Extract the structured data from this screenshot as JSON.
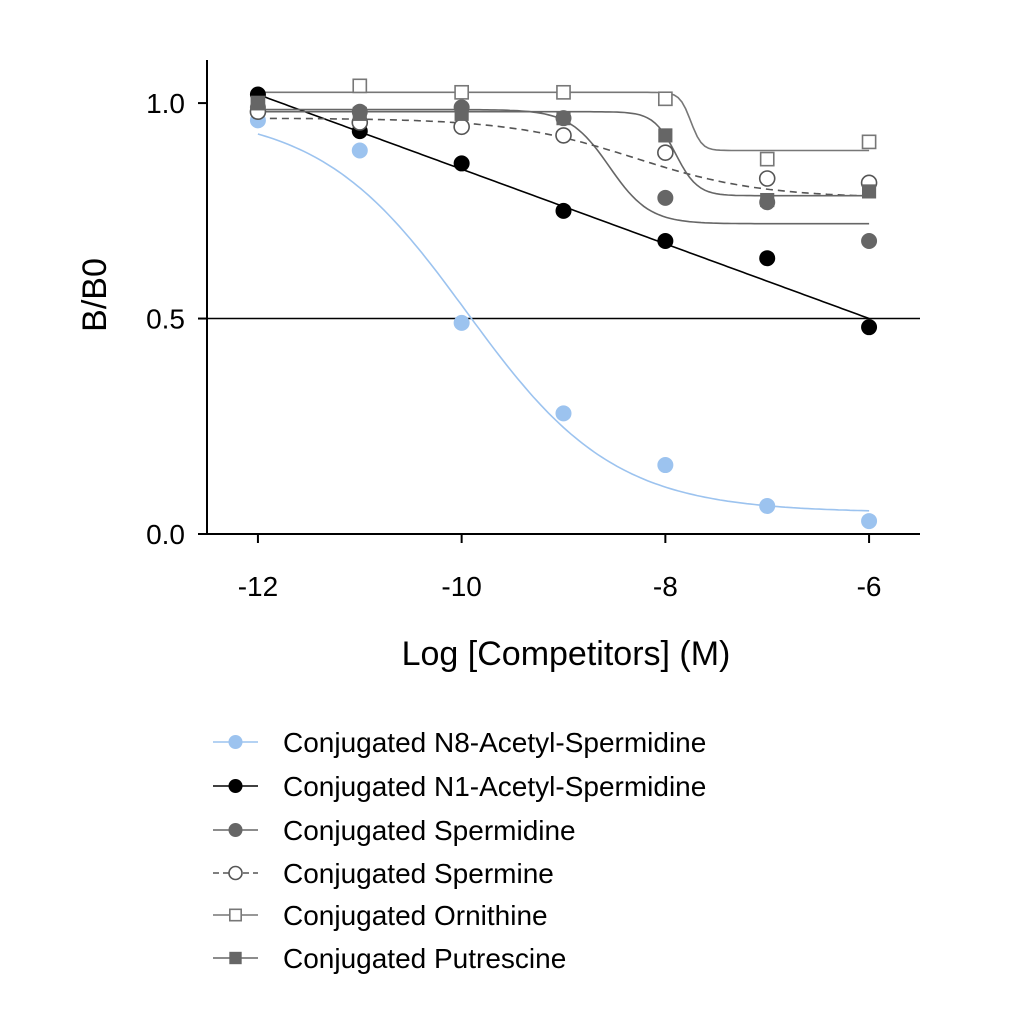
{
  "chart_data": {
    "type": "scatter",
    "title": "",
    "xlabel": "Log [Competitors] (M)",
    "ylabel": "B/B0",
    "xlim": [
      -12.5,
      -5.5
    ],
    "ylim": [
      0,
      1.1
    ],
    "x_ticks": [
      -12,
      -10,
      -8,
      -6
    ],
    "x_tick_labels": [
      "-12",
      "-10",
      "-8",
      "-6"
    ],
    "y_ticks": [
      0,
      0.5,
      1.0
    ],
    "y_tick_labels": [
      "0.0",
      "0.5",
      "1.0"
    ],
    "reference_line_y": 0.5,
    "grid": false,
    "legend_position": "bottom",
    "series": [
      {
        "name": "Conjugated N8-Acetyl-Spermidine",
        "color": "#9cc3ef",
        "marker": "circle-filled",
        "line_style": "solid",
        "fit": {
          "model": "sigmoid",
          "top": 0.98,
          "bottom": 0.05,
          "ic50": -9.95,
          "hill": 0.6
        },
        "points": [
          {
            "x": -12,
            "y": 0.96
          },
          {
            "x": -11,
            "y": 0.89
          },
          {
            "x": -10,
            "y": 0.49
          },
          {
            "x": -9,
            "y": 0.28
          },
          {
            "x": -8,
            "y": 0.16
          },
          {
            "x": -7,
            "y": 0.065
          },
          {
            "x": -6,
            "y": 0.03
          }
        ]
      },
      {
        "name": "Conjugated N1-Acetyl-Spermidine",
        "color": "#000000",
        "marker": "circle-filled",
        "line_style": "solid",
        "fit": {
          "model": "linear",
          "x0": -12,
          "y0": 1.02,
          "x1": -6,
          "y1": 0.5
        },
        "points": [
          {
            "x": -12,
            "y": 1.02
          },
          {
            "x": -11,
            "y": 0.935
          },
          {
            "x": -10,
            "y": 0.86
          },
          {
            "x": -9,
            "y": 0.75
          },
          {
            "x": -8,
            "y": 0.68
          },
          {
            "x": -7,
            "y": 0.64
          },
          {
            "x": -6,
            "y": 0.48
          }
        ]
      },
      {
        "name": "Conjugated Spermidine",
        "color": "#666666",
        "marker": "circle-filled",
        "line_style": "solid",
        "fit": {
          "model": "sigmoid",
          "top": 0.985,
          "bottom": 0.72,
          "ic50": -8.55,
          "hill": 2.2
        },
        "points": [
          {
            "x": -12,
            "y": 0.99
          },
          {
            "x": -11,
            "y": 0.98
          },
          {
            "x": -10,
            "y": 0.99
          },
          {
            "x": -9,
            "y": 0.965
          },
          {
            "x": -8,
            "y": 0.78
          },
          {
            "x": -7,
            "y": 0.77
          },
          {
            "x": -6,
            "y": 0.68
          }
        ]
      },
      {
        "name": "Conjugated Spermine",
        "color": "#555555",
        "marker": "circle-open",
        "line_style": "dashed",
        "fit": {
          "model": "sigmoid",
          "top": 0.965,
          "bottom": 0.78,
          "ic50": -8.3,
          "hill": 0.7
        },
        "points": [
          {
            "x": -12,
            "y": 0.98
          },
          {
            "x": -11,
            "y": 0.955
          },
          {
            "x": -10,
            "y": 0.945
          },
          {
            "x": -9,
            "y": 0.925
          },
          {
            "x": -8,
            "y": 0.885
          },
          {
            "x": -7,
            "y": 0.825
          },
          {
            "x": -6,
            "y": 0.815
          }
        ]
      },
      {
        "name": "Conjugated Ornithine",
        "color": "#777777",
        "marker": "square-open",
        "line_style": "solid",
        "fit": {
          "model": "sigmoid",
          "top": 1.025,
          "bottom": 0.89,
          "ic50": -7.75,
          "hill": 8
        },
        "points": [
          {
            "x": -12,
            "y": 1.0
          },
          {
            "x": -11,
            "y": 1.04
          },
          {
            "x": -10,
            "y": 1.025
          },
          {
            "x": -9,
            "y": 1.025
          },
          {
            "x": -8,
            "y": 1.01
          },
          {
            "x": -7,
            "y": 0.87
          },
          {
            "x": -6,
            "y": 0.91
          }
        ]
      },
      {
        "name": "Conjugated Putrescine",
        "color": "#666666",
        "marker": "square-filled",
        "line_style": "solid",
        "fit": {
          "model": "sigmoid",
          "top": 0.98,
          "bottom": 0.785,
          "ic50": -7.9,
          "hill": 4
        },
        "points": [
          {
            "x": -12,
            "y": 1.0
          },
          {
            "x": -11,
            "y": 0.975
          },
          {
            "x": -10,
            "y": 0.975
          },
          {
            "x": -9,
            "y": 0.965
          },
          {
            "x": -8,
            "y": 0.925
          },
          {
            "x": -7,
            "y": 0.775
          },
          {
            "x": -6,
            "y": 0.795
          }
        ]
      }
    ]
  }
}
